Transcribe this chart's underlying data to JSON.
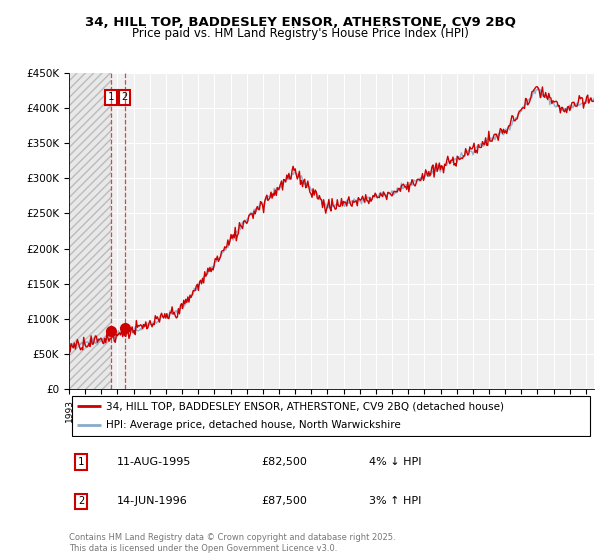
{
  "title1": "34, HILL TOP, BADDESLEY ENSOR, ATHERSTONE, CV9 2BQ",
  "title2": "Price paid vs. HM Land Registry's House Price Index (HPI)",
  "red_line_color": "#cc0000",
  "blue_line_color": "#88aacc",
  "marker_color": "#cc0000",
  "ylim": [
    0,
    450000
  ],
  "yticks": [
    0,
    50000,
    100000,
    150000,
    200000,
    250000,
    300000,
    350000,
    400000,
    450000
  ],
  "ytick_labels": [
    "£0",
    "£50K",
    "£100K",
    "£150K",
    "£200K",
    "£250K",
    "£300K",
    "£350K",
    "£400K",
    "£450K"
  ],
  "xlim_start": 1993,
  "xlim_end": 2025.5,
  "purchase1": {
    "date_num": 1995.61,
    "price": 82500
  },
  "purchase2": {
    "date_num": 1996.45,
    "price": 87500
  },
  "legend_red": "34, HILL TOP, BADDESLEY ENSOR, ATHERSTONE, CV9 2BQ (detached house)",
  "legend_blue": "HPI: Average price, detached house, North Warwickshire",
  "footnote": "Contains HM Land Registry data © Crown copyright and database right 2025.\nThis data is licensed under the Open Government Licence v3.0.",
  "table_rows": [
    {
      "num": "1",
      "date": "11-AUG-1995",
      "price": "£82,500",
      "pct": "4% ↓ HPI"
    },
    {
      "num": "2",
      "date": "14-JUN-1996",
      "price": "£87,500",
      "pct": "3% ↑ HPI"
    }
  ]
}
